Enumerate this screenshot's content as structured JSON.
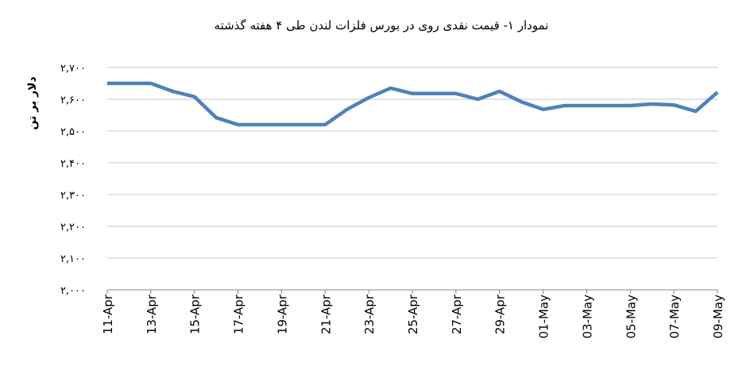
{
  "chart_data": {
    "type": "line",
    "title": "نمودار ۱- قیمت نقدی روی  در بورس فلزات لندن طی ۴ هفته گذشته",
    "y_label": "دلار بر تن",
    "categories": [
      "11-Apr",
      null,
      "13-Apr",
      null,
      "15-Apr",
      null,
      "17-Apr",
      null,
      "19-Apr",
      null,
      "21-Apr",
      null,
      "23-Apr",
      null,
      "25-Apr",
      null,
      "27-Apr",
      null,
      "29-Apr",
      null,
      "01-May",
      null,
      "03-May",
      null,
      "05-May",
      null,
      "07-May",
      null,
      "09-May"
    ],
    "series": [
      {
        "name": "روی",
        "color": "#4f81bd",
        "values": [
          2650,
          2650,
          2650,
          2625,
          2608,
          2542,
          2520,
          2520,
          2520,
          2520,
          2520,
          2568,
          2605,
          2635,
          2618,
          2618,
          2618,
          2600,
          2625,
          2592,
          2568,
          2580,
          2580,
          2580,
          2580,
          2585,
          2582,
          2562,
          2622
        ]
      }
    ],
    "ylim": [
      2000,
      2700
    ],
    "yticks": [
      {
        "value": 2000,
        "label": "۲,۰۰۰"
      },
      {
        "value": 2100,
        "label": "۲,۱۰۰"
      },
      {
        "value": 2200,
        "label": "۲,۲۰۰"
      },
      {
        "value": 2300,
        "label": "۲,۳۰۰"
      },
      {
        "value": 2400,
        "label": "۲,۴۰۰"
      },
      {
        "value": 2500,
        "label": "۲,۵۰۰"
      },
      {
        "value": 2600,
        "label": "۲,۶۰۰"
      },
      {
        "value": 2700,
        "label": "۲,۷۰۰"
      }
    ],
    "grid": true
  }
}
